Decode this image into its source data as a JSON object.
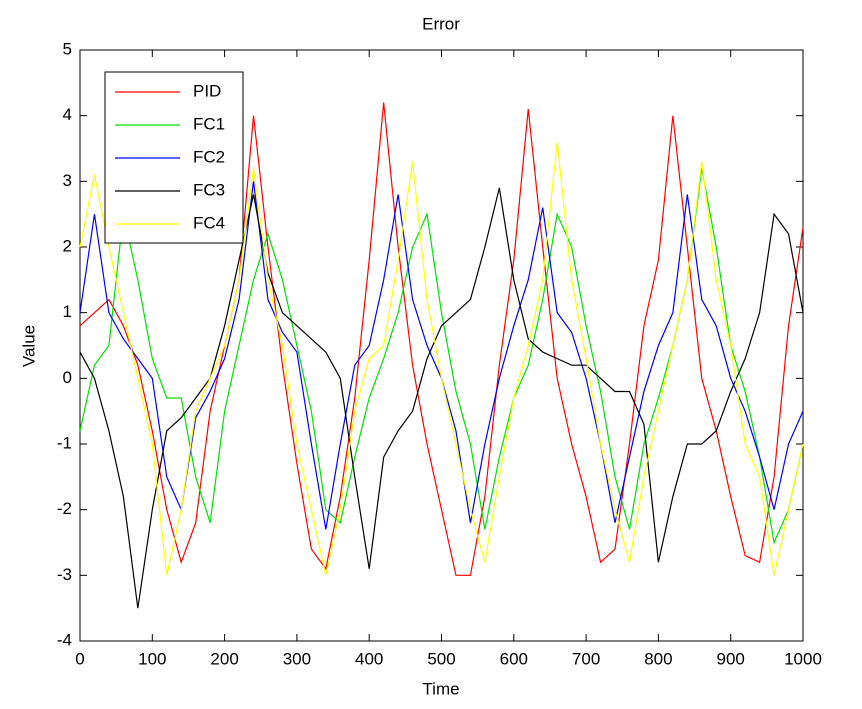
{
  "chart_data": {
    "type": "line",
    "title": "Error",
    "x_label": "Time",
    "y_label": "Value",
    "x": [
      0,
      20,
      40,
      60,
      80,
      100,
      120,
      140,
      160,
      180,
      200,
      220,
      240,
      260,
      280,
      300,
      320,
      340,
      360,
      380,
      400,
      420,
      440,
      460,
      480,
      500,
      520,
      540,
      560,
      580,
      600,
      620,
      640,
      660,
      680,
      700,
      720,
      740,
      760,
      780,
      800,
      820,
      840,
      860,
      880,
      900,
      920,
      940,
      960,
      980,
      1000
    ],
    "series": [
      {
        "name": "PID",
        "color": "#ff0000",
        "values": [
          0.8,
          1.0,
          1.2,
          0.8,
          0.2,
          -0.8,
          -2.0,
          -2.8,
          -2.2,
          -0.5,
          0.5,
          1.5,
          4.0,
          2.0,
          0.2,
          -1.3,
          -2.6,
          -2.9,
          -1.8,
          -0.3,
          1.8,
          4.2,
          2.0,
          0.2,
          -1.0,
          -2.0,
          -3.0,
          -3.0,
          -1.8,
          0.2,
          1.8,
          4.1,
          2.0,
          0.0,
          -1.0,
          -1.8,
          -2.8,
          -2.6,
          -1.0,
          0.8,
          1.8,
          4.0,
          2.0,
          0.0,
          -0.8,
          -1.8,
          -2.7,
          -2.8,
          -1.5,
          0.8,
          2.3
        ]
      },
      {
        "name": "FC1",
        "color": "#00e000",
        "values": [
          -0.8,
          0.2,
          0.5,
          2.5,
          1.5,
          0.3,
          -0.3,
          -0.3,
          -1.5,
          -2.2,
          -0.5,
          0.5,
          1.5,
          2.2,
          1.5,
          0.5,
          -0.5,
          -2.0,
          -2.2,
          -1.2,
          -0.3,
          0.3,
          1.0,
          2.0,
          2.5,
          1.0,
          -0.2,
          -1.0,
          -2.3,
          -1.2,
          -0.3,
          0.2,
          1.2,
          2.5,
          2.0,
          0.8,
          -0.2,
          -1.5,
          -2.3,
          -1.0,
          -0.3,
          0.5,
          1.5,
          3.2,
          2.0,
          0.5,
          -0.2,
          -1.2,
          -2.5,
          -2.0,
          -1.0
        ]
      },
      {
        "name": "FC2",
        "color": "#0000ff",
        "values": [
          1.0,
          2.5,
          1.0,
          0.6,
          0.3,
          0.0,
          -1.5,
          -2.0,
          -0.6,
          -0.2,
          0.3,
          1.2,
          3.0,
          1.2,
          0.7,
          0.4,
          -1.0,
          -2.3,
          -1.0,
          0.2,
          0.5,
          1.5,
          2.8,
          1.2,
          0.5,
          0.0,
          -0.8,
          -2.2,
          -1.0,
          0.0,
          0.8,
          1.5,
          2.6,
          1.0,
          0.7,
          0.0,
          -1.0,
          -2.2,
          -1.2,
          -0.2,
          0.5,
          1.0,
          2.8,
          1.2,
          0.8,
          0.0,
          -0.5,
          -1.2,
          -2.0,
          -1.0,
          -0.5
        ]
      },
      {
        "name": "FC3",
        "color": "#000000",
        "values": [
          0.4,
          0.0,
          -0.8,
          -1.8,
          -3.5,
          -2.0,
          -0.8,
          -0.6,
          -0.3,
          0.0,
          0.8,
          1.8,
          2.8,
          1.6,
          1.0,
          0.8,
          0.6,
          0.4,
          0.0,
          -1.5,
          -2.9,
          -1.2,
          -0.8,
          -0.5,
          0.3,
          0.8,
          1.0,
          1.2,
          2.0,
          2.9,
          1.5,
          0.6,
          0.4,
          0.3,
          0.2,
          0.2,
          0.0,
          -0.2,
          -0.2,
          -0.7,
          -2.8,
          -1.8,
          -1.0,
          -1.0,
          -0.8,
          -0.2,
          0.3,
          1.0,
          2.5,
          2.2,
          1.0
        ]
      },
      {
        "name": "FC4",
        "color": "#ffff00",
        "values": [
          2.0,
          3.1,
          2.0,
          1.0,
          0.0,
          -1.0,
          -3.0,
          -2.0,
          -0.5,
          0.0,
          0.5,
          1.5,
          3.2,
          1.5,
          0.5,
          -1.0,
          -2.0,
          -3.0,
          -2.0,
          -0.5,
          0.3,
          0.5,
          1.8,
          3.3,
          1.2,
          0.0,
          -1.0,
          -2.0,
          -2.8,
          -1.5,
          -0.3,
          0.5,
          1.5,
          3.6,
          1.5,
          0.3,
          -1.0,
          -2.0,
          -2.8,
          -1.5,
          -0.5,
          0.5,
          1.5,
          3.3,
          1.5,
          0.5,
          -1.0,
          -1.5,
          -3.0,
          -2.0,
          -1.0
        ]
      }
    ],
    "xlim": [
      0,
      1000
    ],
    "xticks": [
      0,
      100,
      200,
      300,
      400,
      500,
      600,
      700,
      800,
      900,
      1000
    ],
    "ylim": [
      -4,
      5
    ],
    "yticks": [
      -4,
      -3,
      -2,
      -1,
      0,
      1,
      2,
      3,
      4,
      5
    ],
    "grid": false,
    "legend": "upper left"
  }
}
